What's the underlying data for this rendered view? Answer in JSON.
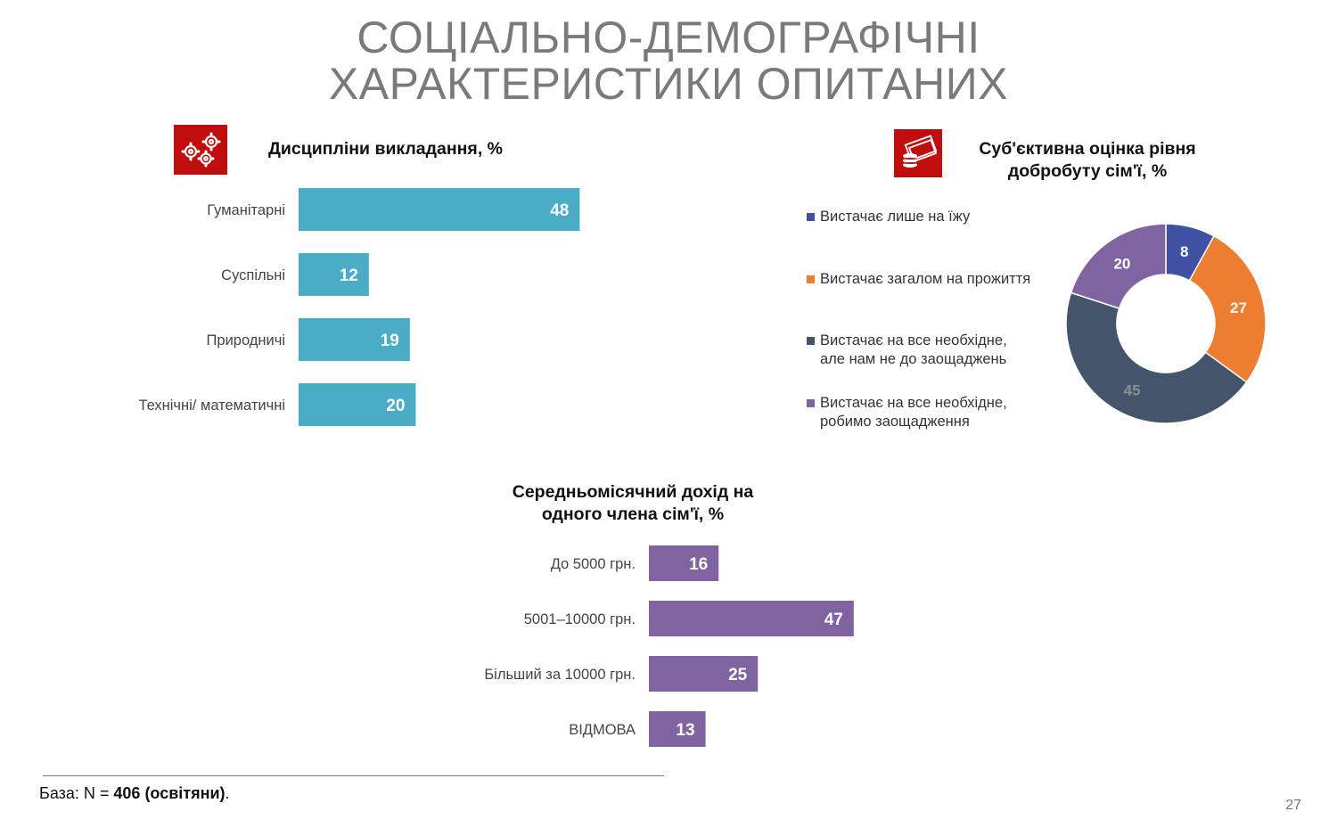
{
  "slide": {
    "title_line1": "СОЦІАЛЬНО-ДЕМОГРАФІЧНІ",
    "title_line2": "ХАРАКТЕРИСТИКИ ОПИТАНИХ",
    "footer_prefix": "База: N = ",
    "footer_bold": "406 (освітяни)",
    "footer_suffix": ".",
    "page_number": "27",
    "icons": {
      "disciplines": "gears-icon",
      "welfare": "money-coins-icon"
    },
    "colors": {
      "accent_red": "#c00d0d",
      "teal_bar": "#4bacc6",
      "purple_bar": "#8064a2"
    }
  },
  "chart_data": [
    {
      "id": "disciplines",
      "type": "bar",
      "orientation": "horizontal",
      "title": "Дисципліни викладання, %",
      "categories": [
        "Гуманітарні",
        "Суспільні",
        "Природничі",
        "Технічні/ математичні"
      ],
      "values": [
        48,
        12,
        19,
        20
      ],
      "color": "#4bacc6",
      "xlim": [
        0,
        100
      ]
    },
    {
      "id": "welfare",
      "type": "pie",
      "donut": true,
      "title_line1": "Суб'єктивна оцінка рівня",
      "title_line2": "добробуту сім'ї, %",
      "legend_position": "left",
      "slices": [
        {
          "label_line1": "Вистачає лише на їжу",
          "label_line2": "",
          "value": 8,
          "color": "#4152a5",
          "value_color": "#ffffff"
        },
        {
          "label_line1": "Вистачає загалом на прожиття",
          "label_line2": "",
          "value": 27,
          "color": "#ed7d31",
          "value_color": "#ffffff"
        },
        {
          "label_line1": "Вистачає на все необхідне,",
          "label_line2": "але нам не до заощаджень",
          "value": 45,
          "color": "#44546a",
          "value_color": "#8a8f97"
        },
        {
          "label_line1": "Вистачає на все необхідне,",
          "label_line2": "робимо заощадження",
          "value": 20,
          "color": "#8064a2",
          "value_color": "#ffffff"
        }
      ]
    },
    {
      "id": "income",
      "type": "bar",
      "orientation": "horizontal",
      "title_line1": "Середньомісячний дохід на",
      "title_line2": "одного члена сім'ї, %",
      "categories": [
        "До 5000 грн.",
        "5001–10000 грн.",
        "Більший за 10000 грн.",
        "ВІДМОВА"
      ],
      "values": [
        16,
        47,
        25,
        13
      ],
      "color": "#8064a2",
      "xlim": [
        0,
        100
      ]
    }
  ]
}
